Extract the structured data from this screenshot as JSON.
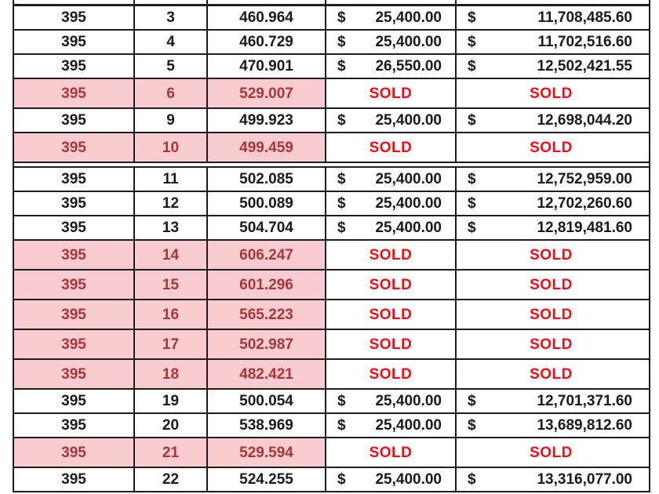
{
  "table": {
    "currency_symbol": "$",
    "sold_label": "SOLD",
    "colors": {
      "highlight_bg": "#f8ccd0",
      "highlight_text": "#a93538",
      "sold_text": "#fb0812",
      "text": "#1a1a1a",
      "border": "#1d1d1d"
    },
    "rows": [
      {
        "c1": "395",
        "c2": "3",
        "c3": "460.964",
        "c4": "25,400.00",
        "c5": "11,708,485.60",
        "sold": false,
        "gap_after": false
      },
      {
        "c1": "395",
        "c2": "4",
        "c3": "460.729",
        "c4": "25,400.00",
        "c5": "11,702,516.60",
        "sold": false,
        "gap_after": false
      },
      {
        "c1": "395",
        "c2": "5",
        "c3": "470.901",
        "c4": "26,550.00",
        "c5": "12,502,421.55",
        "sold": false,
        "gap_after": false
      },
      {
        "c1": "395",
        "c2": "6",
        "c3": "529.007",
        "c4": "SOLD",
        "c5": "SOLD",
        "sold": true,
        "gap_after": false
      },
      {
        "c1": "395",
        "c2": "9",
        "c3": "499.923",
        "c4": "25,400.00",
        "c5": "12,698,044.20",
        "sold": false,
        "gap_after": false
      },
      {
        "c1": "395",
        "c2": "10",
        "c3": "499.459",
        "c4": "SOLD",
        "c5": "SOLD",
        "sold": true,
        "gap_after": true
      },
      {
        "c1": "395",
        "c2": "11",
        "c3": "502.085",
        "c4": "25,400.00",
        "c5": "12,752,959.00",
        "sold": false,
        "gap_after": false
      },
      {
        "c1": "395",
        "c2": "12",
        "c3": "500.089",
        "c4": "25,400.00",
        "c5": "12,702,260.60",
        "sold": false,
        "gap_after": false
      },
      {
        "c1": "395",
        "c2": "13",
        "c3": "504.704",
        "c4": "25,400.00",
        "c5": "12,819,481.60",
        "sold": false,
        "gap_after": false
      },
      {
        "c1": "395",
        "c2": "14",
        "c3": "606.247",
        "c4": "SOLD",
        "c5": "SOLD",
        "sold": true,
        "gap_after": false
      },
      {
        "c1": "395",
        "c2": "15",
        "c3": "601.296",
        "c4": "SOLD",
        "c5": "SOLD",
        "sold": true,
        "gap_after": false
      },
      {
        "c1": "395",
        "c2": "16",
        "c3": "565.223",
        "c4": "SOLD",
        "c5": "SOLD",
        "sold": true,
        "gap_after": false
      },
      {
        "c1": "395",
        "c2": "17",
        "c3": "502.987",
        "c4": "SOLD",
        "c5": "SOLD",
        "sold": true,
        "gap_after": false
      },
      {
        "c1": "395",
        "c2": "18",
        "c3": "482.421",
        "c4": "SOLD",
        "c5": "SOLD",
        "sold": true,
        "gap_after": false
      },
      {
        "c1": "395",
        "c2": "19",
        "c3": "500.054",
        "c4": "25,400.00",
        "c5": "12,701,371.60",
        "sold": false,
        "gap_after": false
      },
      {
        "c1": "395",
        "c2": "20",
        "c3": "538.969",
        "c4": "25,400.00",
        "c5": "13,689,812.60",
        "sold": false,
        "gap_after": false
      },
      {
        "c1": "395",
        "c2": "21",
        "c3": "529.594",
        "c4": "SOLD",
        "c5": "SOLD",
        "sold": true,
        "gap_after": false
      },
      {
        "c1": "395",
        "c2": "22",
        "c3": "524.255",
        "c4": "25,400.00",
        "c5": "13,316,077.00",
        "sold": false,
        "gap_after": false
      }
    ]
  }
}
